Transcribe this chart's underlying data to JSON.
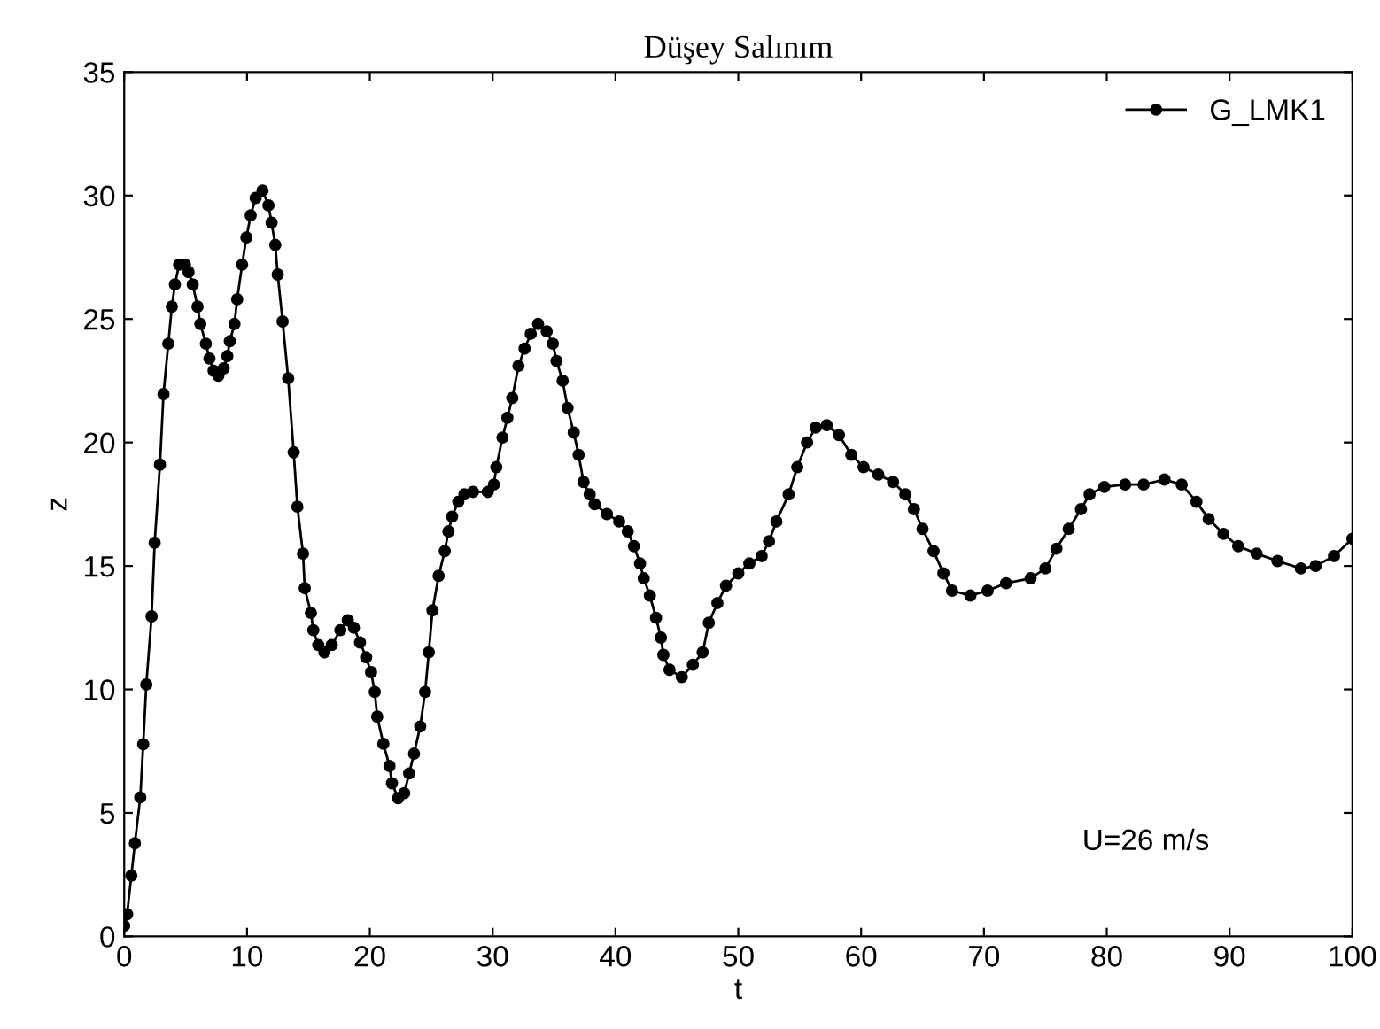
{
  "chart_data": {
    "type": "line",
    "title": "Düşey Salınım",
    "xlabel": "t",
    "ylabel": "z",
    "xlim": [
      0,
      100
    ],
    "ylim": [
      0,
      35
    ],
    "xticks": [
      0,
      10,
      20,
      30,
      40,
      50,
      60,
      70,
      80,
      90,
      100
    ],
    "yticks": [
      0,
      5,
      10,
      15,
      20,
      25,
      30,
      35
    ],
    "grid": false,
    "legend": "top right",
    "marker": "circle",
    "line_style": "solid",
    "annotations": [
      "U=26 m/s"
    ],
    "series": [
      {
        "name": "G_LMK1",
        "color": "#000000",
        "x": [
          0,
          0.24,
          0.58,
          0.87,
          1.31,
          1.55,
          1.8,
          2.23,
          2.48,
          2.91,
          3.2,
          3.59,
          3.88,
          4.13,
          4.47,
          4.95,
          5.24,
          5.58,
          5.97,
          6.2,
          6.65,
          6.94,
          7.28,
          7.67,
          8.1,
          8.4,
          8.6,
          8.98,
          9.2,
          9.6,
          9.95,
          10.3,
          10.7,
          11.26,
          11.75,
          12.0,
          12.3,
          12.5,
          12.9,
          13.35,
          13.8,
          14.1,
          14.56,
          14.7,
          15.2,
          15.4,
          15.8,
          16.3,
          16.9,
          17.6,
          18.2,
          18.7,
          19.2,
          19.7,
          20.1,
          20.4,
          20.6,
          21.1,
          21.6,
          21.8,
          22.3,
          22.8,
          23.2,
          23.6,
          24.1,
          24.5,
          24.8,
          25.1,
          25.6,
          26.1,
          26.4,
          26.7,
          27.2,
          27.7,
          28.4,
          29.6,
          30.1,
          30.3,
          30.8,
          31.2,
          31.6,
          32.1,
          32.6,
          33.1,
          33.7,
          34.4,
          34.9,
          35.2,
          35.7,
          36.1,
          36.6,
          37.0,
          37.4,
          37.9,
          38.3,
          39.3,
          40.3,
          41.0,
          41.5,
          42.0,
          42.3,
          42.8,
          43.3,
          43.7,
          43.9,
          44.4,
          45.4,
          46.3,
          47.1,
          47.6,
          48.3,
          49.0,
          50.0,
          50.9,
          51.9,
          52.5,
          53.1,
          54.1,
          54.8,
          55.6,
          56.3,
          57.2,
          58.2,
          59.2,
          60.2,
          61.4,
          62.6,
          63.6,
          64.3,
          65.0,
          65.9,
          66.7,
          67.4,
          68.9,
          70.3,
          71.8,
          73.8,
          75.0,
          75.9,
          76.9,
          77.9,
          78.6,
          79.8,
          81.5,
          83.0,
          84.7,
          86.1,
          87.3,
          88.3,
          89.5,
          90.7,
          92.2,
          93.9,
          95.8,
          97.0,
          98.5,
          100
        ],
        "values": [
          0.43,
          0.9,
          2.46,
          3.77,
          5.63,
          7.78,
          10.2,
          12.96,
          15.94,
          19.1,
          21.96,
          24.0,
          25.5,
          26.4,
          27.2,
          27.2,
          26.9,
          26.4,
          25.5,
          24.8,
          24.0,
          23.4,
          22.9,
          22.7,
          23.0,
          23.5,
          24.1,
          24.8,
          25.8,
          27.2,
          28.3,
          29.2,
          29.9,
          30.2,
          29.6,
          28.9,
          28.0,
          26.8,
          24.9,
          22.6,
          19.6,
          17.4,
          15.5,
          14.1,
          13.1,
          12.4,
          11.8,
          11.5,
          11.8,
          12.4,
          12.8,
          12.5,
          11.9,
          11.3,
          10.7,
          9.9,
          8.9,
          7.8,
          6.9,
          6.2,
          5.6,
          5.8,
          6.6,
          7.4,
          8.5,
          9.9,
          11.5,
          13.2,
          14.6,
          15.6,
          16.4,
          17.0,
          17.6,
          17.9,
          18.0,
          18.0,
          18.3,
          19.0,
          20.2,
          21.0,
          21.8,
          23.1,
          23.8,
          24.4,
          24.8,
          24.5,
          24.0,
          23.3,
          22.5,
          21.4,
          20.4,
          19.5,
          18.4,
          17.9,
          17.5,
          17.1,
          16.8,
          16.4,
          15.8,
          15.1,
          14.5,
          13.8,
          12.9,
          12.1,
          11.4,
          10.8,
          10.5,
          11.0,
          11.5,
          12.7,
          13.5,
          14.2,
          14.7,
          15.1,
          15.4,
          16.0,
          16.8,
          17.9,
          19.0,
          20.0,
          20.6,
          20.7,
          20.3,
          19.5,
          19.0,
          18.7,
          18.4,
          17.9,
          17.3,
          16.5,
          15.6,
          14.7,
          14.0,
          13.8,
          14.0,
          14.3,
          14.5,
          14.9,
          15.7,
          16.5,
          17.3,
          17.9,
          18.2,
          18.3,
          18.3,
          18.5,
          18.3,
          17.6,
          16.9,
          16.3,
          15.8,
          15.5,
          15.2,
          14.9,
          15.0,
          15.4,
          16.1
        ]
      }
    ]
  }
}
